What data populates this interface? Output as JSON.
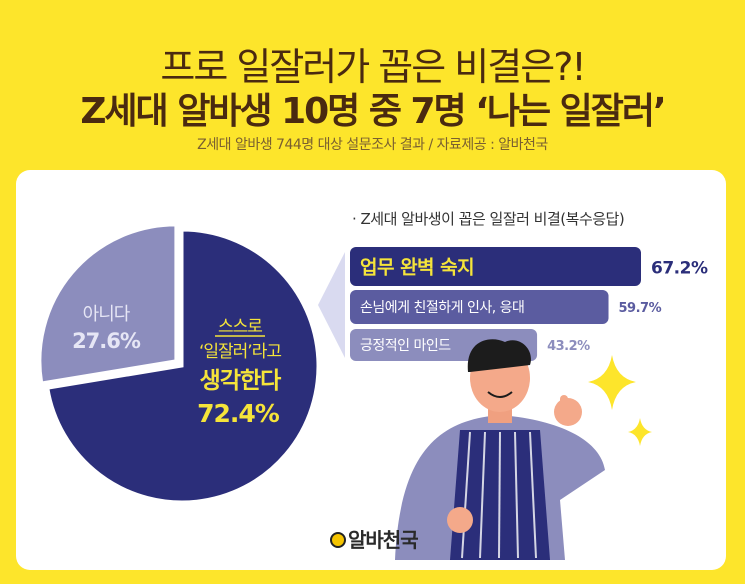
{
  "header": {
    "title": "프로 일잘러가 꼽은 비결은?!",
    "headline": "Z세대 알바생 10명 중 7명 ‘나는 일잘러’",
    "source": "Z세대 알바생 744명 대상 설문조사 결과 / 자료제공 : 알바천국"
  },
  "chart_data": [
    {
      "type": "pie",
      "slices": [
        {
          "label_lines": [
            "스스로",
            "‘일잘러’라고",
            "생각한다"
          ],
          "value": 72.4,
          "value_label": "72.4%",
          "color": "#2b2e7a"
        },
        {
          "label_lines": [
            "아니다"
          ],
          "value": 27.6,
          "value_label": "27.6%",
          "color": "#8c8dbd"
        }
      ]
    },
    {
      "type": "bar",
      "orientation": "horizontal",
      "title": "· Z세대 알바생이 꼽은 일잘러 비결(복수응답)",
      "categories": [
        "업무 완벽 숙지",
        "손님에게 친절하게 인사, 응대",
        "긍정적인 마인드"
      ],
      "values": [
        67.2,
        59.7,
        43.2
      ],
      "value_labels": [
        "67.2%",
        "59.7%",
        "43.2%"
      ],
      "colors": [
        "#2b2e7a",
        "#5b5ca0",
        "#8c8dbd"
      ]
    }
  ],
  "logo": {
    "text": "알바천국"
  },
  "colors": {
    "background": "#fde52b",
    "title": "#4a2a10",
    "highlight": "#f5e43a"
  }
}
